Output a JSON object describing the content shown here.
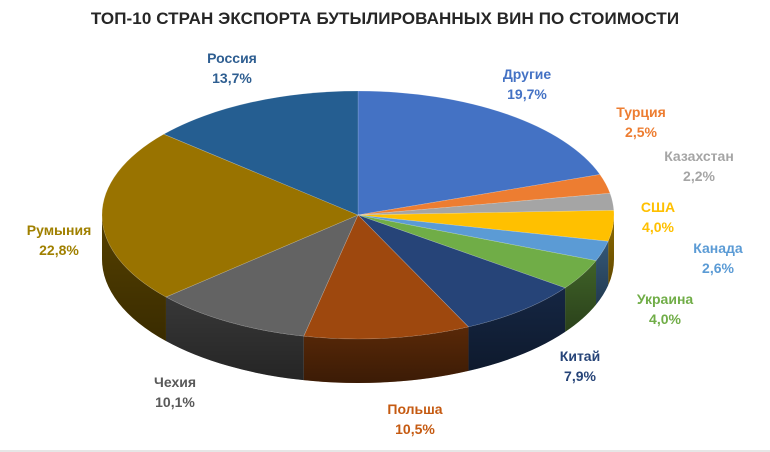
{
  "chart_data": {
    "type": "pie",
    "style": "3d",
    "title": "ТОП-10 СТРАН ЭКСПОРТА БУТЫЛИРОВАННЫХ ВИН ПО СТОИМОСТИ",
    "legend": "none",
    "slices": [
      {
        "name": "Другие",
        "label": "Другие",
        "value_text": "19,7%",
        "value": 19.7,
        "color": "#4472c4"
      },
      {
        "name": "Турция",
        "label": "Турция",
        "value_text": "2,5%",
        "value": 2.5,
        "color": "#ed7d31"
      },
      {
        "name": "Казахстан",
        "label": "Казахстан",
        "value_text": "2,2%",
        "value": 2.2,
        "color": "#a5a5a5"
      },
      {
        "name": "США",
        "label": "США",
        "value_text": "4,0%",
        "value": 4.0,
        "color": "#ffc000"
      },
      {
        "name": "Канада",
        "label": "Канада",
        "value_text": "2,6%",
        "value": 2.6,
        "color": "#5b9bd5"
      },
      {
        "name": "Украина",
        "label": "Украина",
        "value_text": "4,0%",
        "value": 4.0,
        "color": "#70ad47"
      },
      {
        "name": "Китай",
        "label": "Китай",
        "value_text": "7,9%",
        "value": 7.9,
        "color": "#264478"
      },
      {
        "name": "Польша",
        "label": "Польша",
        "value_text": "10,5%",
        "value": 10.5,
        "color": "#9e480e"
      },
      {
        "name": "Чехия",
        "label": "Чехия",
        "value_text": "10,1%",
        "value": 10.1,
        "color": "#636363"
      },
      {
        "name": "Румыния",
        "label": "Румыния",
        "value_text": "22,8%",
        "value": 22.8,
        "color": "#997300"
      },
      {
        "name": "Россия",
        "label": "Россия",
        "value_text": "13,7%",
        "value": 13.7,
        "color": "#255e91"
      }
    ],
    "label_colors": {
      "Другие": "#4472c4",
      "Турция": "#ed7d31",
      "Казахстан": "#a5a5a5",
      "США": "#ffc000",
      "Канада": "#5b9bd5",
      "Украина": "#70ad47",
      "Китай": "#264478",
      "Польша": "#c55a11",
      "Чехия": "#595959",
      "Румыния": "#a08000",
      "Россия": "#2e5e91"
    }
  }
}
